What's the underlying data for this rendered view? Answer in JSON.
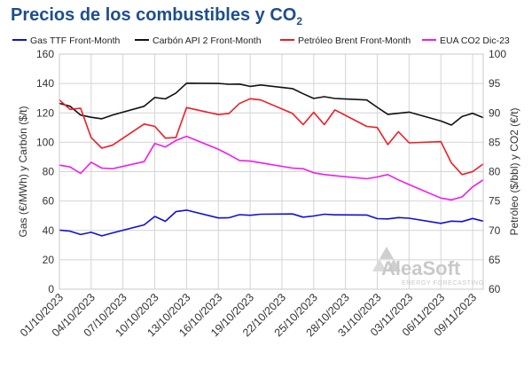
{
  "chart_data": {
    "type": "line",
    "title": "Precios de los combustibles y CO",
    "title_subscript": "2",
    "ylabel_left": "Gas (€/MWh) y Carbón ($/t)",
    "ylabel_right": "Petróleo ($/bbl) y CO2 (€/t)",
    "ylim_left": [
      0,
      160
    ],
    "ylim_right": [
      60,
      100
    ],
    "yticks_left": [
      "0",
      "20",
      "40",
      "60",
      "80",
      "100",
      "120",
      "140",
      "160"
    ],
    "yticks_right": [
      "60",
      "65",
      "70",
      "75",
      "80",
      "85",
      "90",
      "95",
      "100"
    ],
    "xtick_labels": [
      "01/10/2023",
      "04/10/2023",
      "07/10/2023",
      "10/10/2023",
      "13/10/2023",
      "16/10/2023",
      "19/10/2023",
      "22/10/2023",
      "25/10/2023",
      "28/10/2023",
      "31/10/2023",
      "03/11/2023",
      "06/11/2023",
      "09/11/2023"
    ],
    "x_day_start": 1,
    "x_day_end": 41,
    "grid": true,
    "legend_position": "top",
    "watermark": {
      "main": "AleaSoft",
      "sub": "ENERGY FORECASTING"
    },
    "series": [
      {
        "name": "Gas TTF Front-Month",
        "color": "#1010d8",
        "axis": "left",
        "points": [
          [
            1,
            40.2
          ],
          [
            2,
            39.5
          ],
          [
            3,
            37.2
          ],
          [
            4,
            38.7
          ],
          [
            5,
            36.3
          ],
          [
            6,
            38.3
          ],
          [
            9,
            43.8
          ],
          [
            10,
            49.5
          ],
          [
            11,
            46.2
          ],
          [
            12,
            52.8
          ],
          [
            13,
            53.8
          ],
          [
            16,
            48.5
          ],
          [
            17,
            48.6
          ],
          [
            18,
            50.7
          ],
          [
            19,
            50.3
          ],
          [
            20,
            51.0
          ],
          [
            23,
            51.2
          ],
          [
            24,
            49.0
          ],
          [
            25,
            49.8
          ],
          [
            26,
            51.0
          ],
          [
            27,
            50.6
          ],
          [
            30,
            50.5
          ],
          [
            31,
            48.0
          ],
          [
            32,
            47.8
          ],
          [
            33,
            48.7
          ],
          [
            34,
            48.3
          ],
          [
            37,
            44.8
          ],
          [
            38,
            46.3
          ],
          [
            39,
            46.0
          ],
          [
            40,
            48.1
          ],
          [
            41,
            46.3
          ]
        ]
      },
      {
        "name": "Carbón API 2 Front-Month",
        "color": "#111111",
        "axis": "left",
        "points": [
          [
            1,
            126.5
          ],
          [
            2,
            124.5
          ],
          [
            3,
            118.5
          ],
          [
            4,
            117.0
          ],
          [
            5,
            116.0
          ],
          [
            6,
            118.5
          ],
          [
            9,
            124.5
          ],
          [
            10,
            130.5
          ],
          [
            11,
            129.5
          ],
          [
            12,
            133.5
          ],
          [
            13,
            140.2
          ],
          [
            16,
            140.0
          ],
          [
            17,
            139.5
          ],
          [
            18,
            139.6
          ],
          [
            19,
            138.0
          ],
          [
            20,
            139.0
          ],
          [
            23,
            136.5
          ],
          [
            24,
            133.0
          ],
          [
            25,
            129.8
          ],
          [
            26,
            131.0
          ],
          [
            27,
            129.8
          ],
          [
            30,
            128.8
          ],
          [
            31,
            123.8
          ],
          [
            32,
            119.0
          ],
          [
            33,
            119.7
          ],
          [
            34,
            120.5
          ],
          [
            37,
            114.5
          ],
          [
            38,
            111.7
          ],
          [
            39,
            117.5
          ],
          [
            40,
            119.7
          ],
          [
            41,
            116.8
          ]
        ]
      },
      {
        "name": "Petróleo Brent Front-Month",
        "color": "#ee1c25",
        "axis": "right",
        "points": [
          [
            1,
            92.2
          ],
          [
            2,
            90.6
          ],
          [
            3,
            90.8
          ],
          [
            4,
            85.8
          ],
          [
            5,
            84.0
          ],
          [
            6,
            84.5
          ],
          [
            9,
            88.1
          ],
          [
            10,
            87.7
          ],
          [
            11,
            85.7
          ],
          [
            12,
            85.8
          ],
          [
            13,
            90.9
          ],
          [
            16,
            89.7
          ],
          [
            17,
            89.9
          ],
          [
            18,
            91.6
          ],
          [
            19,
            92.4
          ],
          [
            20,
            92.2
          ],
          [
            23,
            89.9
          ],
          [
            24,
            88.0
          ],
          [
            25,
            90.1
          ],
          [
            26,
            88.0
          ],
          [
            27,
            90.5
          ],
          [
            30,
            87.7
          ],
          [
            31,
            87.5
          ],
          [
            32,
            84.6
          ],
          [
            33,
            86.8
          ],
          [
            34,
            84.9
          ],
          [
            37,
            85.1
          ],
          [
            38,
            81.5
          ],
          [
            39,
            79.5
          ],
          [
            40,
            80.0
          ],
          [
            41,
            81.3
          ]
        ]
      },
      {
        "name": "EUA CO2 Dic-23",
        "color": "#f01af0",
        "axis": "right",
        "points": [
          [
            1,
            81.1
          ],
          [
            2,
            80.8
          ],
          [
            3,
            79.7
          ],
          [
            4,
            81.6
          ],
          [
            5,
            80.6
          ],
          [
            6,
            80.5
          ],
          [
            9,
            81.7
          ],
          [
            10,
            84.8
          ],
          [
            11,
            84.2
          ],
          [
            12,
            85.3
          ],
          [
            13,
            86.0
          ],
          [
            16,
            83.8
          ],
          [
            17,
            82.9
          ],
          [
            18,
            81.9
          ],
          [
            19,
            81.8
          ],
          [
            20,
            81.5
          ],
          [
            23,
            80.6
          ],
          [
            24,
            80.5
          ],
          [
            25,
            79.8
          ],
          [
            26,
            79.5
          ],
          [
            27,
            79.3
          ],
          [
            30,
            78.8
          ],
          [
            31,
            79.1
          ],
          [
            32,
            79.5
          ],
          [
            33,
            78.6
          ],
          [
            34,
            77.8
          ],
          [
            37,
            75.5
          ],
          [
            38,
            75.2
          ],
          [
            39,
            75.7
          ],
          [
            40,
            77.4
          ],
          [
            41,
            78.6
          ]
        ]
      }
    ]
  }
}
